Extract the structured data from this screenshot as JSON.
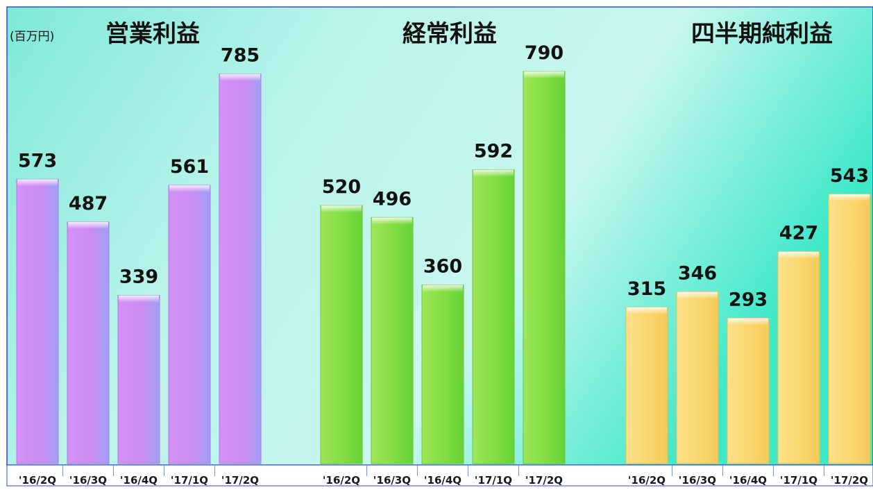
{
  "chart_data": {
    "type": "bar",
    "unit_label": "(百万円)",
    "panels": [
      {
        "title": "営業利益",
        "categories": [
          "'16/2Q",
          "'16/3Q",
          "'16/4Q",
          "'17/1Q",
          "'17/2Q"
        ],
        "values": [
          573,
          487,
          339,
          561,
          785
        ],
        "color": "#cc88f0"
      },
      {
        "title": "経常利益",
        "categories": [
          "'16/2Q",
          "'16/3Q",
          "'16/4Q",
          "'17/1Q",
          "'17/2Q"
        ],
        "values": [
          520,
          496,
          360,
          592,
          790
        ],
        "color": "#8fe04a"
      },
      {
        "title": "四半期純利益",
        "categories": [
          "'16/2Q",
          "'16/3Q",
          "'16/4Q",
          "'17/1Q",
          "'17/2Q"
        ],
        "values": [
          315,
          346,
          293,
          427,
          543
        ],
        "color": "#fad96e"
      }
    ],
    "ylim": [
      0,
      1000
    ],
    "grid": false
  }
}
